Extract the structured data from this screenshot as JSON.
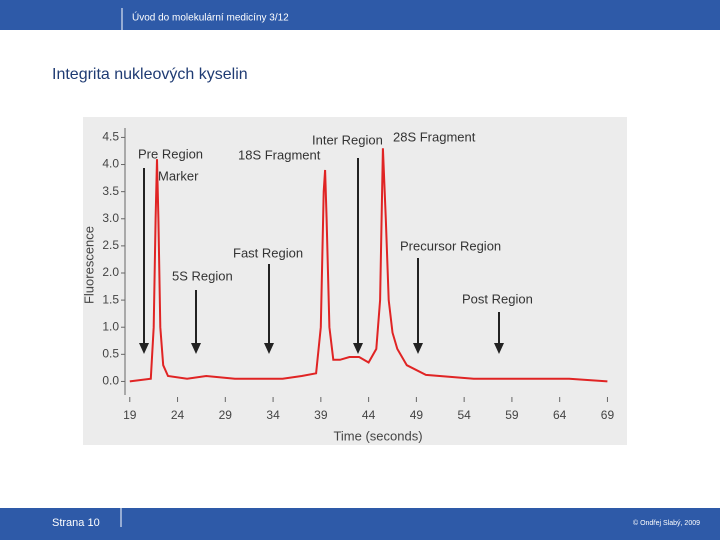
{
  "header": {
    "text": "Úvod do molekulární medicíny 3/12"
  },
  "title": "Integrita nukleových kyselin",
  "footer": {
    "page": "Strana 10",
    "copyright": "© Ondřej Slabý, 2009"
  },
  "chart_data": {
    "type": "line",
    "x_label": "Time (seconds)",
    "y_label": "Fluorescence",
    "x": [
      19,
      21.2,
      21.5,
      21.7,
      21.85,
      22.0,
      22.2,
      22.5,
      23,
      25,
      27,
      30,
      35,
      37,
      38.5,
      39.0,
      39.3,
      39.45,
      39.6,
      39.9,
      40.3,
      41,
      42,
      43,
      44,
      44.8,
      45.2,
      45.5,
      45.8,
      46.1,
      46.5,
      47,
      48,
      50,
      55,
      60,
      65,
      69
    ],
    "series": [
      {
        "color": "#e02424",
        "values": [
          0.0,
          0.05,
          1.0,
          3.0,
          4.1,
          3.0,
          1.0,
          0.3,
          0.1,
          0.05,
          0.1,
          0.05,
          0.05,
          0.1,
          0.15,
          1.0,
          3.5,
          3.9,
          3.0,
          1.0,
          0.4,
          0.4,
          0.45,
          0.45,
          0.35,
          0.6,
          1.5,
          4.3,
          3.0,
          1.5,
          0.9,
          0.6,
          0.3,
          0.12,
          0.05,
          0.05,
          0.05,
          0.0
        ]
      }
    ],
    "xlim": [
      18.5,
      70
    ],
    "xticks": [
      19,
      24,
      29,
      34,
      39,
      44,
      49,
      54,
      59,
      64,
      69
    ],
    "ylim": [
      -0.25,
      4.6
    ],
    "yticks": [
      {
        "value": 0,
        "label": "0.0"
      },
      0.5,
      {
        "value": 1,
        "label": "1.0"
      },
      1.5,
      {
        "value": 2,
        "label": "2.0"
      },
      2.5,
      {
        "value": 3,
        "label": "3.0"
      },
      3.5,
      {
        "value": 4,
        "label": "4.0"
      },
      4.5
    ],
    "annotations": [
      "Pre Region",
      "Marker",
      "18S Fragment",
      "Inter Region",
      "28S Fragment",
      "Fast Region",
      "5S Region",
      "Precursor Region",
      "Post Region"
    ]
  }
}
